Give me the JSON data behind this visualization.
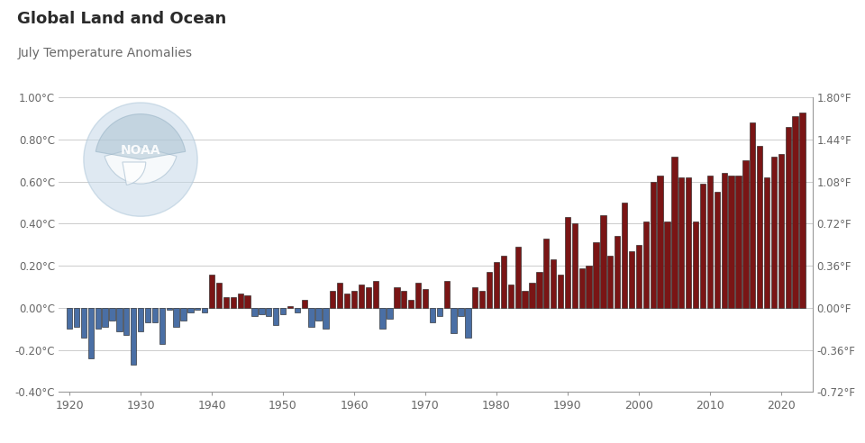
{
  "title1": "Global Land and Ocean",
  "title2": "July Temperature Anomalies",
  "background_color": "#ffffff",
  "bar_color_pos": "#7a1515",
  "bar_color_neg": "#4a6fa5",
  "grid_color": "#cccccc",
  "text_color_title1": "#2a2a2a",
  "text_color_title2": "#6a6a6a",
  "ylim": [
    -0.4,
    1.0
  ],
  "yticks_left": [
    -0.4,
    -0.2,
    0.0,
    0.2,
    0.4,
    0.6,
    0.8,
    1.0
  ],
  "ytick_labels_left": [
    "-0.40°C",
    "-0.20°C",
    "0.00°C",
    "0.20°C",
    "0.40°C",
    "0.60°C",
    "0.80°C",
    "1.00°C"
  ],
  "ytick_labels_right": [
    "-0.72°F",
    "-0.36°F",
    "0.00°F",
    "0.36°F",
    "0.72°F",
    "1.08°F",
    "1.44°F",
    "1.80°F"
  ],
  "years": [
    1920,
    1921,
    1922,
    1923,
    1924,
    1925,
    1926,
    1927,
    1928,
    1929,
    1930,
    1931,
    1932,
    1933,
    1934,
    1935,
    1936,
    1937,
    1938,
    1939,
    1940,
    1941,
    1942,
    1943,
    1944,
    1945,
    1946,
    1947,
    1948,
    1949,
    1950,
    1951,
    1952,
    1953,
    1954,
    1955,
    1956,
    1957,
    1958,
    1959,
    1960,
    1961,
    1962,
    1963,
    1964,
    1965,
    1966,
    1967,
    1968,
    1969,
    1970,
    1971,
    1972,
    1973,
    1974,
    1975,
    1976,
    1977,
    1978,
    1979,
    1980,
    1981,
    1982,
    1983,
    1984,
    1985,
    1986,
    1987,
    1988,
    1989,
    1990,
    1991,
    1992,
    1993,
    1994,
    1995,
    1996,
    1997,
    1998,
    1999,
    2000,
    2001,
    2002,
    2003,
    2004,
    2005,
    2006,
    2007,
    2008,
    2009,
    2010,
    2011,
    2012,
    2013,
    2014,
    2015,
    2016,
    2017,
    2018,
    2019,
    2020,
    2021,
    2022,
    2023
  ],
  "anomalies": [
    -0.1,
    -0.09,
    -0.14,
    -0.24,
    -0.1,
    -0.09,
    -0.06,
    -0.11,
    -0.13,
    -0.27,
    -0.11,
    -0.07,
    -0.07,
    -0.17,
    -0.01,
    -0.09,
    -0.06,
    -0.02,
    -0.01,
    -0.02,
    0.16,
    0.12,
    0.05,
    0.05,
    0.07,
    0.06,
    -0.04,
    -0.03,
    -0.04,
    -0.08,
    -0.03,
    0.01,
    -0.02,
    0.04,
    -0.09,
    -0.06,
    -0.1,
    0.08,
    0.12,
    0.07,
    0.08,
    0.11,
    0.1,
    0.13,
    -0.1,
    -0.05,
    0.1,
    0.08,
    0.04,
    0.12,
    0.09,
    -0.07,
    -0.04,
    0.13,
    -0.12,
    -0.04,
    -0.14,
    0.1,
    0.08,
    0.17,
    0.22,
    0.25,
    0.11,
    0.29,
    0.08,
    0.12,
    0.17,
    0.33,
    0.23,
    0.16,
    0.43,
    0.4,
    0.19,
    0.2,
    0.31,
    0.44,
    0.25,
    0.34,
    0.5,
    0.27,
    0.3,
    0.41,
    0.6,
    0.63,
    0.41,
    0.72,
    0.62,
    0.62,
    0.41,
    0.59,
    0.63,
    0.55,
    0.64,
    0.63,
    0.63,
    0.7,
    0.88,
    0.77,
    0.62,
    0.72,
    0.73,
    0.86,
    0.91,
    0.93
  ]
}
